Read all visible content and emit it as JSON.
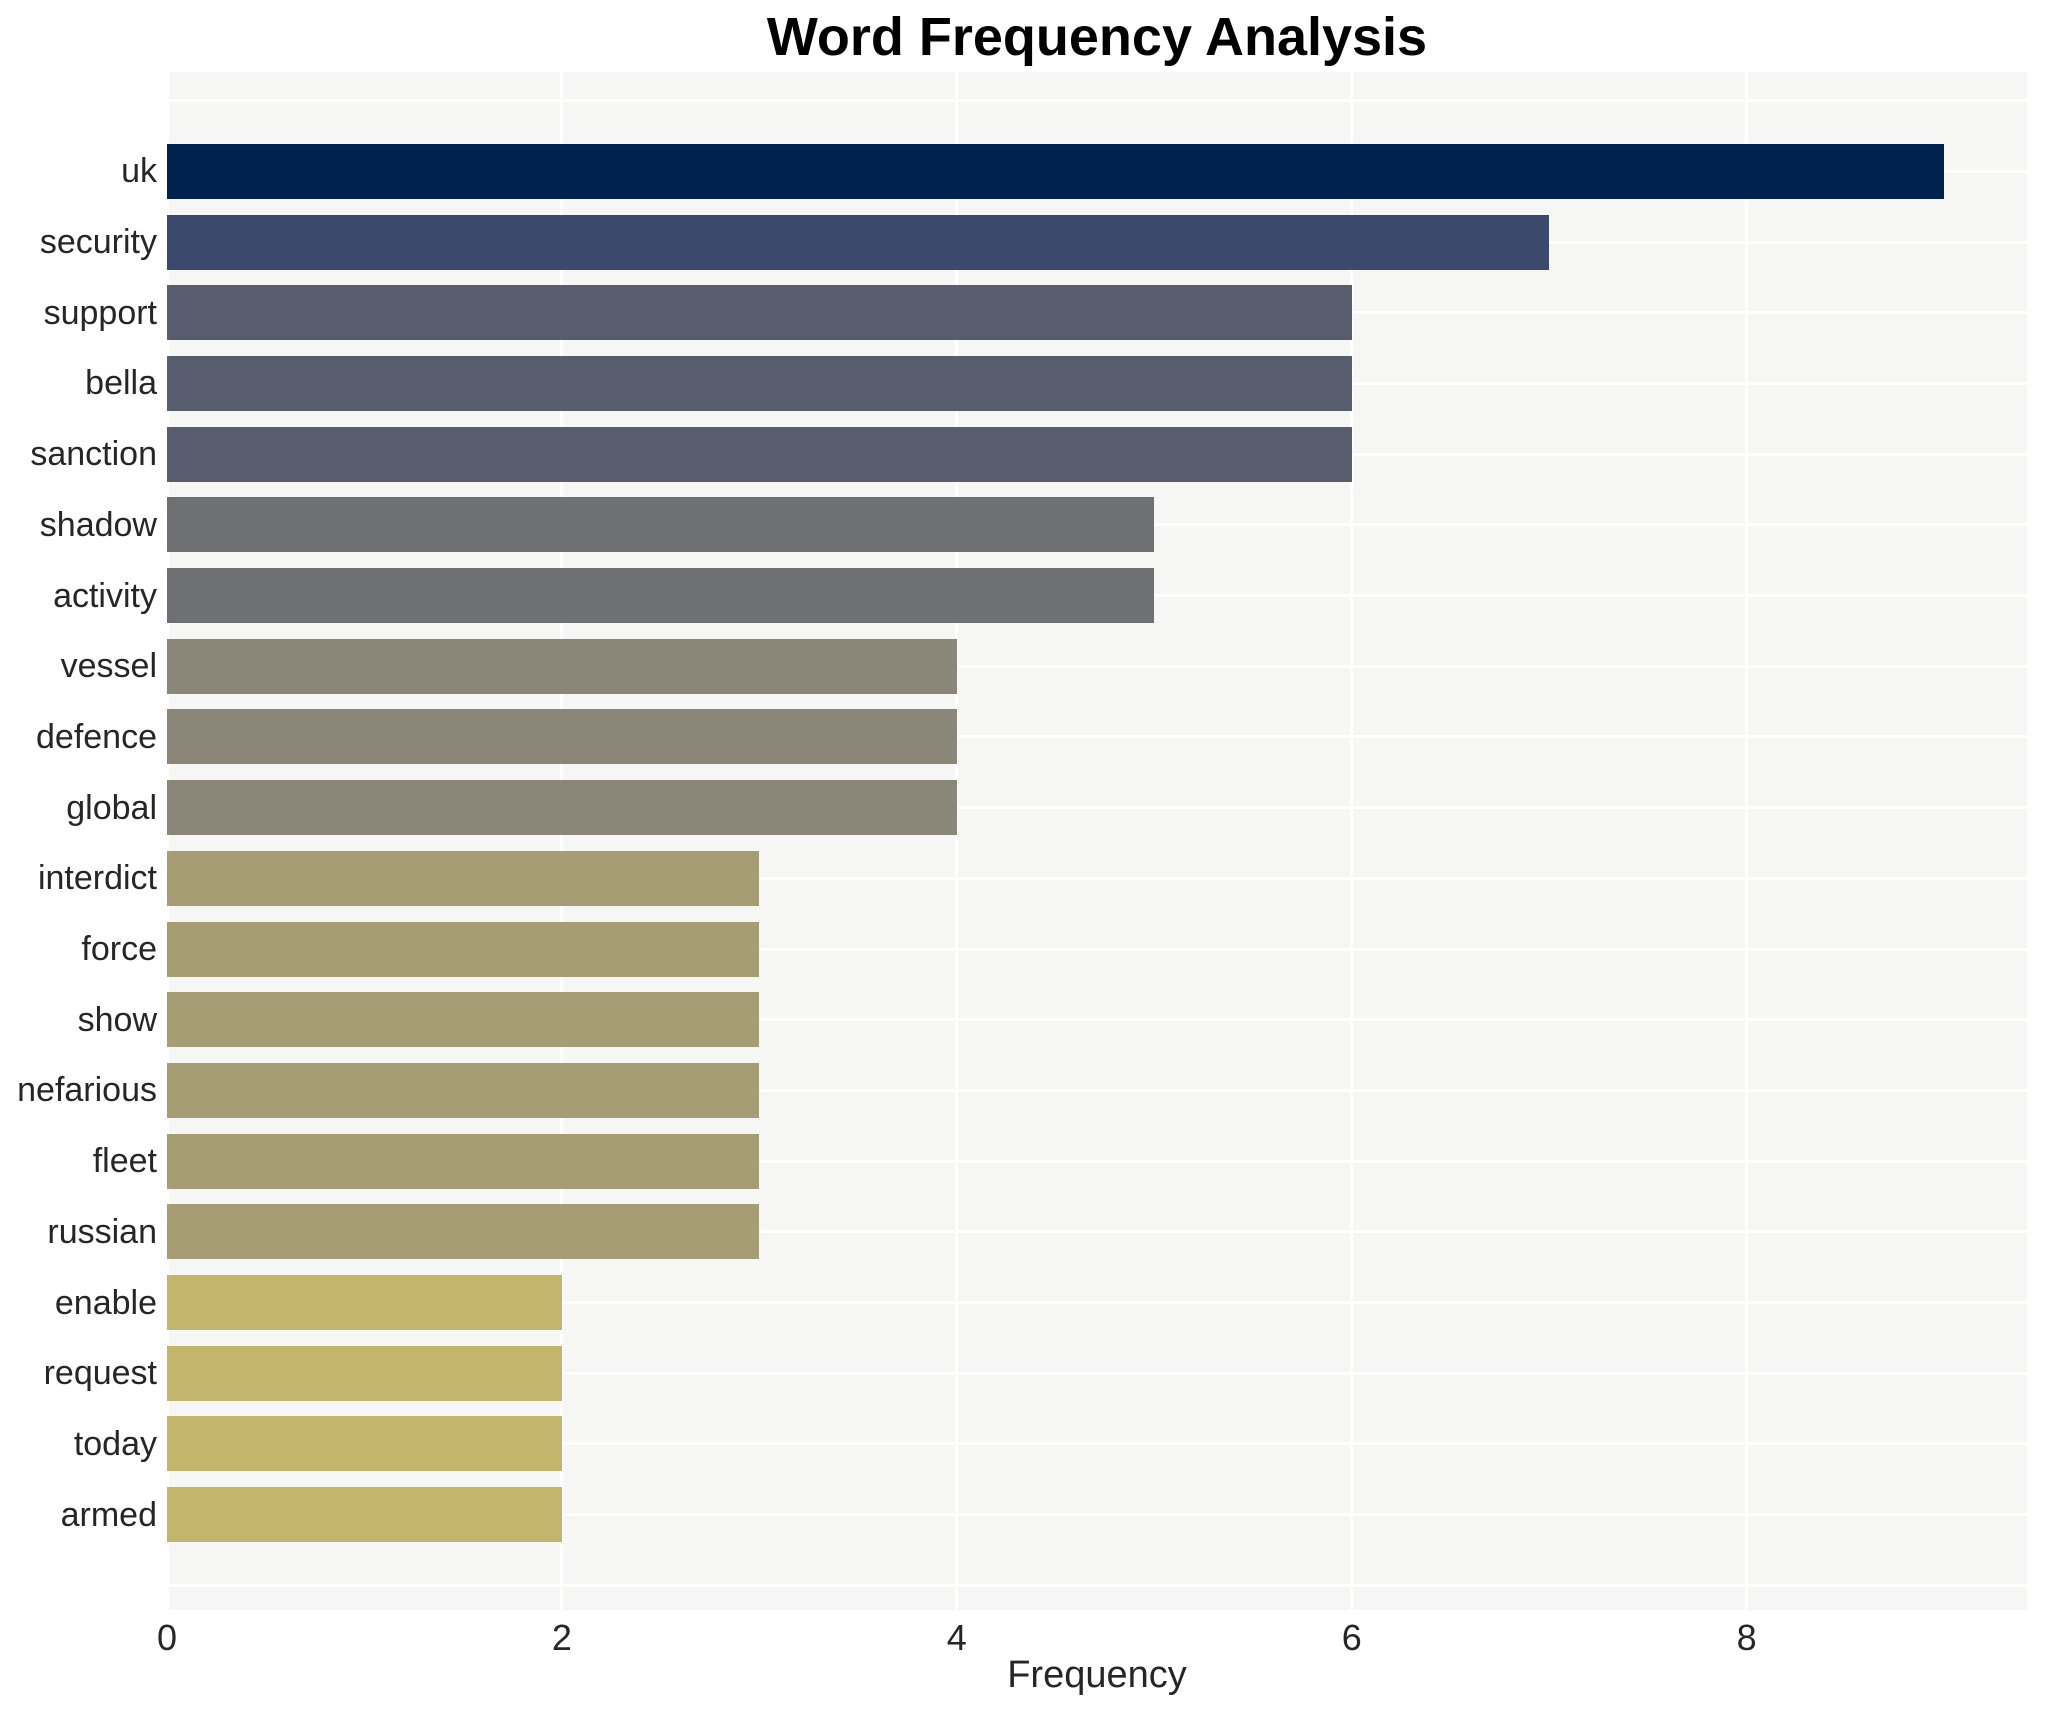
{
  "chart_data": {
    "type": "bar",
    "orientation": "horizontal",
    "title": "Word Frequency Analysis",
    "xlabel": "Frequency",
    "ylabel": "",
    "categories": [
      "uk",
      "security",
      "support",
      "bella",
      "sanction",
      "shadow",
      "activity",
      "vessel",
      "defence",
      "global",
      "interdict",
      "force",
      "show",
      "nefarious",
      "fleet",
      "russian",
      "enable",
      "request",
      "today",
      "armed"
    ],
    "values": [
      9,
      7,
      6,
      6,
      6,
      5,
      5,
      4,
      4,
      4,
      3,
      3,
      3,
      3,
      3,
      3,
      2,
      2,
      2,
      2
    ],
    "bar_colors": [
      "#00224e",
      "#3b496c",
      "#575d6d",
      "#575d6d",
      "#575d6d",
      "#6e7073",
      "#6e7073",
      "#8a8779",
      "#8a8779",
      "#8a8779",
      "#a69d75",
      "#a69d75",
      "#a69d75",
      "#a69d75",
      "#a69d75",
      "#a69d75",
      "#c3b56c",
      "#c3b56c",
      "#c3b56c",
      "#c3b56c"
    ],
    "xlim": [
      0,
      9.42
    ],
    "x_ticks": [
      "0",
      "2",
      "4",
      "6",
      "8"
    ],
    "x_tick_values": [
      0,
      2,
      4,
      6,
      8
    ],
    "grid": true,
    "legend": "none",
    "plot_background": "#f6f6f4",
    "gridline_color": "#ffffff",
    "text_color": "#262626",
    "title_color": "#000000"
  }
}
